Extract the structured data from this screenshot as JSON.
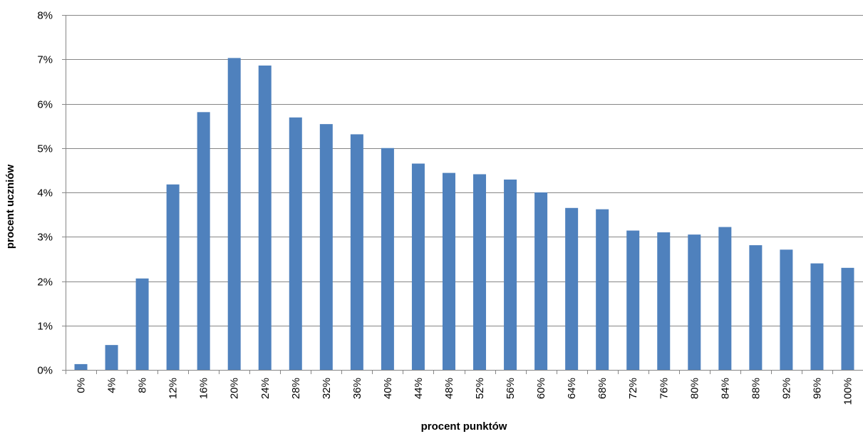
{
  "chart_data": {
    "type": "bar",
    "title": "",
    "xlabel": "procent  punktów",
    "ylabel": "procent  uczniów",
    "categories": [
      "0%",
      "4%",
      "8%",
      "12%",
      "16%",
      "20%",
      "24%",
      "28%",
      "32%",
      "36%",
      "40%",
      "44%",
      "48%",
      "52%",
      "56%",
      "60%",
      "64%",
      "68%",
      "72%",
      "76%",
      "80%",
      "84%",
      "88%",
      "92%",
      "96%",
      "100%"
    ],
    "values": [
      0.13,
      0.56,
      2.06,
      4.18,
      5.81,
      7.03,
      6.86,
      5.69,
      5.54,
      5.31,
      5.0,
      4.65,
      4.44,
      4.41,
      4.29,
      4.0,
      3.65,
      3.62,
      3.14,
      3.1,
      3.05,
      3.22,
      2.81,
      2.71,
      2.4,
      2.3
    ],
    "value_unit": "%",
    "ylim": [
      0,
      8
    ],
    "yticks": [
      0,
      1,
      2,
      3,
      4,
      5,
      6,
      7,
      8
    ],
    "ytick_labels": [
      "0%",
      "1%",
      "2%",
      "3%",
      "4%",
      "5%",
      "6%",
      "7%",
      "8%"
    ],
    "grid": true,
    "legend": "none",
    "bar_color": "#4f81bd",
    "grid_color": "#868686"
  }
}
